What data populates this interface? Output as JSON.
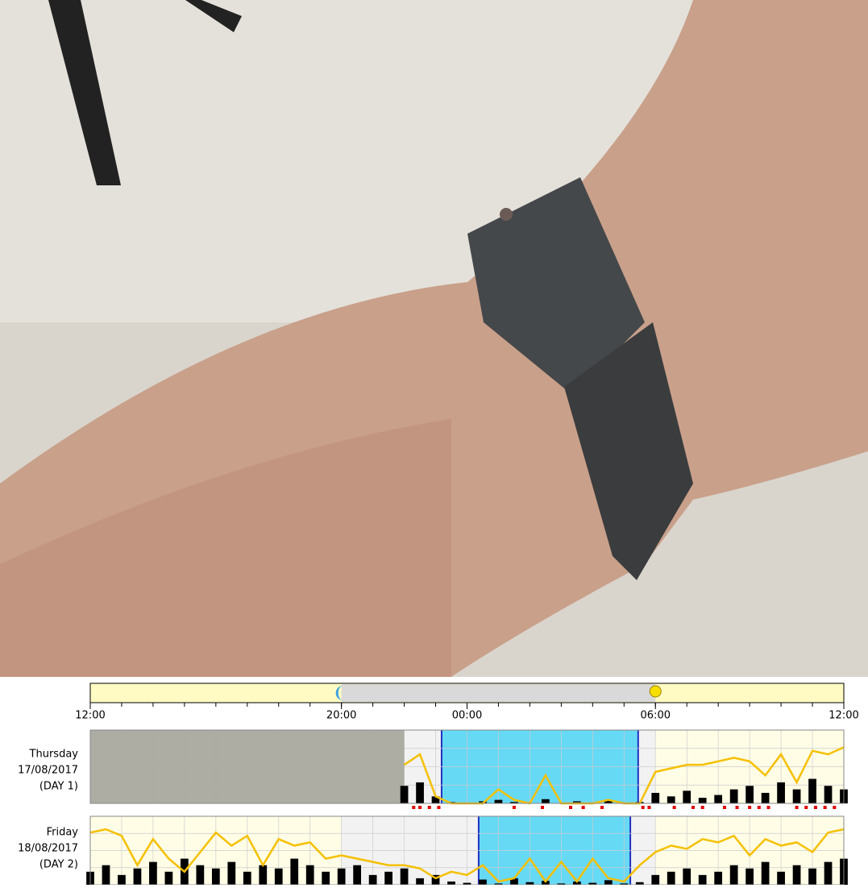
{
  "chart_data": {
    "type": "actogram",
    "xlim": [
      12,
      36
    ],
    "xticks": [
      {
        "value": 12,
        "label": "12:00"
      },
      {
        "value": 20,
        "label": "20:00"
      },
      {
        "value": 24,
        "label": "00:00"
      },
      {
        "value": 30,
        "label": "06:00"
      },
      {
        "value": 36,
        "label": "12:00"
      }
    ],
    "night": [
      20,
      30
    ],
    "ylim": [
      0,
      100
    ],
    "x": [
      12,
      12.5,
      13,
      13.5,
      14,
      14.5,
      15,
      15.5,
      16,
      16.5,
      17,
      17.5,
      18,
      18.5,
      19,
      19.5,
      20,
      20.5,
      21,
      21.5,
      22,
      22.5,
      23,
      23.5,
      24,
      24.5,
      25,
      25.5,
      26,
      26.5,
      27,
      27.5,
      28,
      28.5,
      29,
      29.5,
      30,
      30.5,
      31,
      31.5,
      32,
      32.5,
      33,
      33.5,
      34,
      34.5,
      35,
      35.5,
      36
    ],
    "light_color": "#f5c000",
    "activity_color": "#000000",
    "rest_color": "#66d9f5",
    "offwrist_color": "#e00000",
    "days": [
      {
        "label": [
          "Thursday",
          "17/08/2017",
          "(DAY 1)"
        ],
        "no_data": [
          12,
          22
        ],
        "rest": [
          23.19,
          29.45
        ],
        "light": [
          null,
          null,
          null,
          null,
          null,
          null,
          null,
          null,
          null,
          null,
          null,
          null,
          null,
          null,
          null,
          null,
          null,
          null,
          null,
          null,
          55,
          70,
          10,
          0,
          0,
          0,
          20,
          5,
          0,
          40,
          0,
          0,
          0,
          5,
          0,
          0,
          45,
          50,
          55,
          55,
          60,
          65,
          60,
          40,
          70,
          30,
          75,
          70,
          80
        ],
        "activity": [
          null,
          null,
          null,
          null,
          null,
          null,
          null,
          null,
          null,
          null,
          null,
          null,
          null,
          null,
          null,
          null,
          null,
          null,
          null,
          null,
          25,
          30,
          10,
          2,
          0,
          3,
          5,
          2,
          0,
          6,
          0,
          3,
          0,
          4,
          0,
          2,
          15,
          10,
          18,
          8,
          12,
          20,
          25,
          15,
          30,
          20,
          35,
          25,
          20
        ],
        "offwrist": [
          22.3,
          22.5,
          22.8,
          23.1,
          25.5,
          26.4,
          27.3,
          27.7,
          28.3,
          29.6,
          29.8,
          30.6,
          31.2,
          31.5,
          32.2,
          32.6,
          33,
          33.3,
          33.6,
          34.5,
          34.8,
          35.1,
          35.4,
          35.7
        ]
      },
      {
        "label": [
          "Friday",
          "18/08/2017",
          "(DAY 2)"
        ],
        "no_data": null,
        "rest": [
          24.37,
          29.2
        ],
        "light": [
          80,
          85,
          75,
          30,
          70,
          40,
          20,
          50,
          80,
          60,
          75,
          30,
          70,
          60,
          65,
          40,
          45,
          40,
          35,
          30,
          30,
          25,
          10,
          20,
          15,
          30,
          5,
          10,
          40,
          5,
          35,
          5,
          40,
          10,
          5,
          30,
          50,
          60,
          55,
          70,
          65,
          75,
          45,
          70,
          60,
          65,
          50,
          80,
          85
        ],
        "activity": [
          20,
          30,
          15,
          25,
          35,
          20,
          40,
          30,
          25,
          35,
          20,
          30,
          25,
          40,
          30,
          20,
          25,
          30,
          15,
          20,
          25,
          10,
          15,
          5,
          3,
          8,
          2,
          10,
          4,
          6,
          2,
          5,
          3,
          7,
          2,
          4,
          15,
          20,
          25,
          15,
          20,
          30,
          25,
          35,
          20,
          30,
          25,
          35,
          40
        ],
        "offwrist": []
      }
    ]
  }
}
